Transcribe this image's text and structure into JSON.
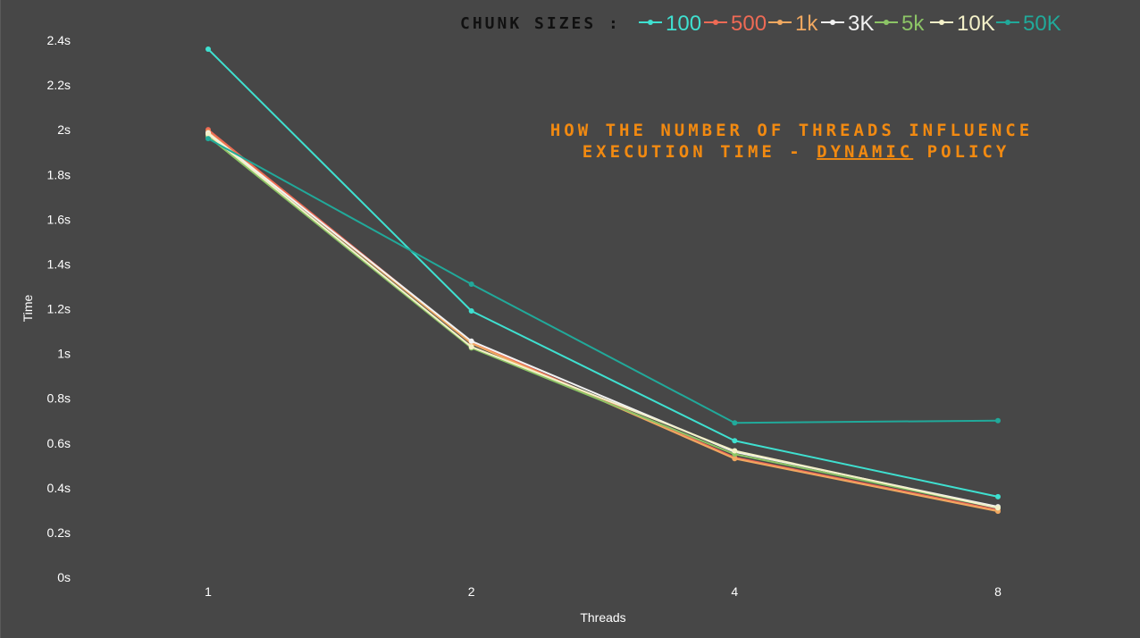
{
  "chart_data": {
    "type": "line",
    "title_prefix": "HOW THE NUMBER OF THREADS INFLUENCE",
    "title_line2_before": "EXECUTION TIME - ",
    "title_emphasis": "DYNAMIC",
    "title_line2_after": " POLICY",
    "xlabel": "Threads",
    "ylabel": "Time",
    "categories": [
      "1",
      "2",
      "4",
      "8"
    ],
    "yticks": [
      "0s",
      "0.2s",
      "0.4s",
      "0.6s",
      "0.8s",
      "1s",
      "1.2s",
      "1.4s",
      "1.6s",
      "1.8s",
      "2s",
      "2.2s",
      "2.4s"
    ],
    "ylim": [
      0,
      2.4
    ],
    "grid": false,
    "legend_position": "top-right",
    "legend_prefix": "CHUNK SIZES :",
    "series": [
      {
        "name": "100",
        "color": "#3fe0d0",
        "values": [
          2.36,
          1.19,
          0.61,
          0.36
        ]
      },
      {
        "name": "500",
        "color": "#ee6a55",
        "values": [
          2.0,
          1.05,
          0.535,
          0.3
        ]
      },
      {
        "name": "1k",
        "color": "#f0a860",
        "values": [
          1.99,
          1.045,
          0.53,
          0.295
        ]
      },
      {
        "name": "3K",
        "color": "#f2f2f2",
        "values": [
          1.985,
          1.055,
          0.56,
          0.315
        ]
      },
      {
        "name": "5k",
        "color": "#8cc466",
        "values": [
          1.97,
          1.025,
          0.55,
          0.31
        ]
      },
      {
        "name": "10K",
        "color": "#f3f0c8",
        "values": [
          1.98,
          1.03,
          0.565,
          0.31
        ]
      },
      {
        "name": "50K",
        "color": "#21a99a",
        "values": [
          1.96,
          1.31,
          0.69,
          0.7
        ]
      }
    ]
  }
}
